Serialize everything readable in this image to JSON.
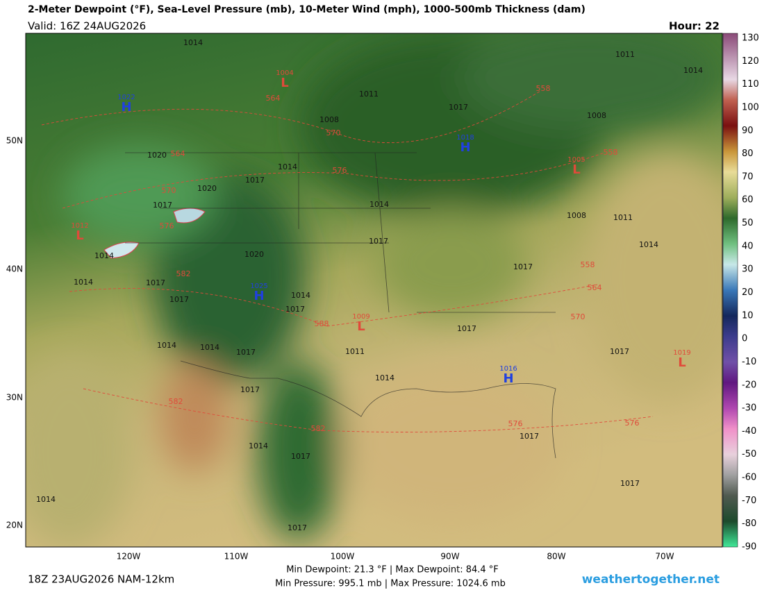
{
  "header": {
    "title": "2-Meter Dewpoint (°F), Sea-Level Pressure (mb), 10-Meter Wind (mph), 1000-500mb Thickness (dam)",
    "valid": "Valid: 16Z 24AUG2026",
    "hour": "Hour: 22"
  },
  "colorbar": {
    "labels": [
      130,
      120,
      110,
      100,
      90,
      80,
      70,
      60,
      50,
      40,
      30,
      20,
      10,
      0,
      -10,
      -20,
      -30,
      -40,
      -50,
      -60,
      -70,
      -80,
      -90
    ]
  },
  "axes": {
    "lon": [
      "120W",
      "110W",
      "100W",
      "90W",
      "80W",
      "70W"
    ],
    "lat": [
      "50N",
      "40N",
      "30N",
      "20N"
    ]
  },
  "map": {
    "centers": [
      {
        "letter": "H",
        "value": 1022
      },
      {
        "letter": "L",
        "value": 1004
      },
      {
        "letter": "H",
        "value": 1018
      },
      {
        "letter": "L",
        "value": 1005
      },
      {
        "letter": "L",
        "value": 1012
      },
      {
        "letter": "H",
        "value": 1025
      },
      {
        "letter": "L",
        "value": 1009
      },
      {
        "letter": "H",
        "value": 1016
      },
      {
        "letter": "L",
        "value": 1019
      }
    ],
    "isobars": [
      1014,
      1011,
      1017,
      1008,
      1008,
      1011,
      1014,
      1020,
      1014,
      1017,
      1020,
      1017,
      1014,
      1008,
      1011,
      1014,
      1017,
      1020,
      1014,
      1014,
      1017,
      1017,
      1017,
      1014,
      1017,
      1017,
      1014,
      1014,
      1011,
      1017,
      1017,
      1014,
      1017,
      1017,
      1014,
      1017,
      1017,
      1014,
      1017
    ],
    "thickness": [
      564,
      570,
      576,
      564,
      570,
      576,
      582,
      588,
      558,
      558,
      558,
      564,
      570,
      582,
      582,
      576,
      576
    ]
  },
  "footer": {
    "run": "18Z 23AUG2026 NAM-12km",
    "dewpoint": "Min Dewpoint:  21.3 °F | Max Dewpoint:  84.4 °F",
    "pressure": "Min Pressure: 995.1 mb | Max Pressure: 1024.6 mb",
    "site": "weathertogether.net"
  }
}
